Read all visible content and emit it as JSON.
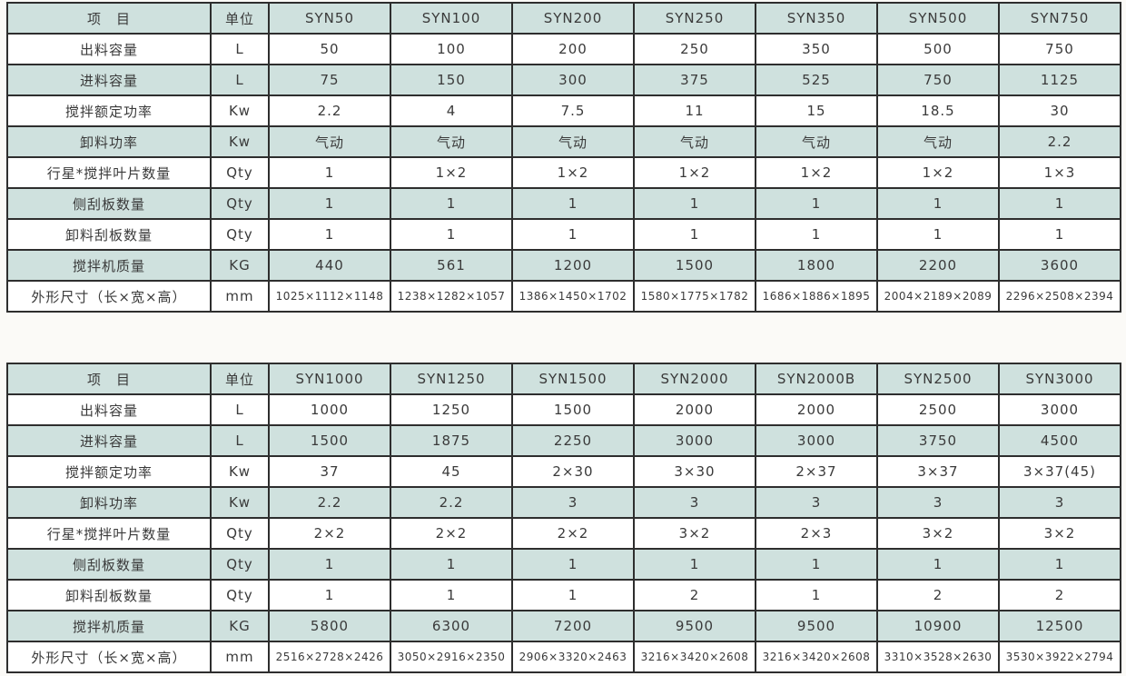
{
  "colors": {
    "stripe": "#cfe1de",
    "border": "#2e2e2e",
    "text": "#3a3a3a",
    "page_background": "#fbfaf7"
  },
  "tables": [
    {
      "name": "syn-spec-table-small-models",
      "header": {
        "item_label": "项　目",
        "unit_label": "单位",
        "models": [
          "SYN50",
          "SYN100",
          "SYN200",
          "SYN250",
          "SYN350",
          "SYN500",
          "SYN750"
        ]
      },
      "rows": [
        {
          "label": "出料容量",
          "unit": "L",
          "values": [
            "50",
            "100",
            "200",
            "250",
            "350",
            "500",
            "750"
          ],
          "small": false
        },
        {
          "label": "进料容量",
          "unit": "L",
          "values": [
            "75",
            "150",
            "300",
            "375",
            "525",
            "750",
            "1125"
          ],
          "small": false
        },
        {
          "label": "搅拌额定功率",
          "unit": "Kw",
          "values": [
            "2.2",
            "4",
            "7.5",
            "11",
            "15",
            "18.5",
            "30"
          ],
          "small": false
        },
        {
          "label": "卸料功率",
          "unit": "Kw",
          "values": [
            "气动",
            "气动",
            "气动",
            "气动",
            "气动",
            "气动",
            "2.2"
          ],
          "small": false
        },
        {
          "label": "行星*搅拌叶片数量",
          "unit": "Qty",
          "values": [
            "1",
            "1×2",
            "1×2",
            "1×2",
            "1×2",
            "1×2",
            "1×3"
          ],
          "small": false
        },
        {
          "label": "侧刮板数量",
          "unit": "Qty",
          "values": [
            "1",
            "1",
            "1",
            "1",
            "1",
            "1",
            "1"
          ],
          "small": false
        },
        {
          "label": "卸料刮板数量",
          "unit": "Qty",
          "values": [
            "1",
            "1",
            "1",
            "1",
            "1",
            "1",
            "1"
          ],
          "small": false
        },
        {
          "label": "搅拌机质量",
          "unit": "KG",
          "values": [
            "440",
            "561",
            "1200",
            "1500",
            "1800",
            "2200",
            "3600"
          ],
          "small": false
        },
        {
          "label": "外形尺寸（长×宽×高）",
          "unit": "mm",
          "values": [
            "1025×1112×1148",
            "1238×1282×1057",
            "1386×1450×1702",
            "1580×1775×1782",
            "1686×1886×1895",
            "2004×2189×2089",
            "2296×2508×2394"
          ],
          "small": true
        }
      ]
    },
    {
      "name": "syn-spec-table-large-models",
      "header": {
        "item_label": "项　目",
        "unit_label": "单位",
        "models": [
          "SYN1000",
          "SYN1250",
          "SYN1500",
          "SYN2000",
          "SYN2000B",
          "SYN2500",
          "SYN3000"
        ]
      },
      "rows": [
        {
          "label": "出料容量",
          "unit": "L",
          "values": [
            "1000",
            "1250",
            "1500",
            "2000",
            "2000",
            "2500",
            "3000"
          ],
          "small": false
        },
        {
          "label": "进料容量",
          "unit": "L",
          "values": [
            "1500",
            "1875",
            "2250",
            "3000",
            "3000",
            "3750",
            "4500"
          ],
          "small": false
        },
        {
          "label": "搅拌额定功率",
          "unit": "Kw",
          "values": [
            "37",
            "45",
            "2×30",
            "3×30",
            "2×37",
            "3×37",
            "3×37(45)"
          ],
          "small": false
        },
        {
          "label": "卸料功率",
          "unit": "Kw",
          "values": [
            "2.2",
            "2.2",
            "3",
            "3",
            "3",
            "3",
            "3"
          ],
          "small": false
        },
        {
          "label": "行星*搅拌叶片数量",
          "unit": "Qty",
          "values": [
            "2×2",
            "2×2",
            "2×2",
            "3×2",
            "2×3",
            "3×2",
            "3×2"
          ],
          "small": false
        },
        {
          "label": "侧刮板数量",
          "unit": "Qty",
          "values": [
            "1",
            "1",
            "1",
            "1",
            "1",
            "1",
            "1"
          ],
          "small": false
        },
        {
          "label": "卸料刮板数量",
          "unit": "Qty",
          "values": [
            "1",
            "1",
            "1",
            "2",
            "1",
            "2",
            "2"
          ],
          "small": false
        },
        {
          "label": "搅拌机质量",
          "unit": "KG",
          "values": [
            "5800",
            "6300",
            "7200",
            "9500",
            "9500",
            "10900",
            "12500"
          ],
          "small": false
        },
        {
          "label": "外形尺寸（长×宽×高）",
          "unit": "mm",
          "values": [
            "2516×2728×2426",
            "3050×2916×2350",
            "2906×3320×2463",
            "3216×3420×2608",
            "3216×3420×2608",
            "3310×3528×2630",
            "3530×3922×2794"
          ],
          "small": true
        }
      ]
    }
  ]
}
